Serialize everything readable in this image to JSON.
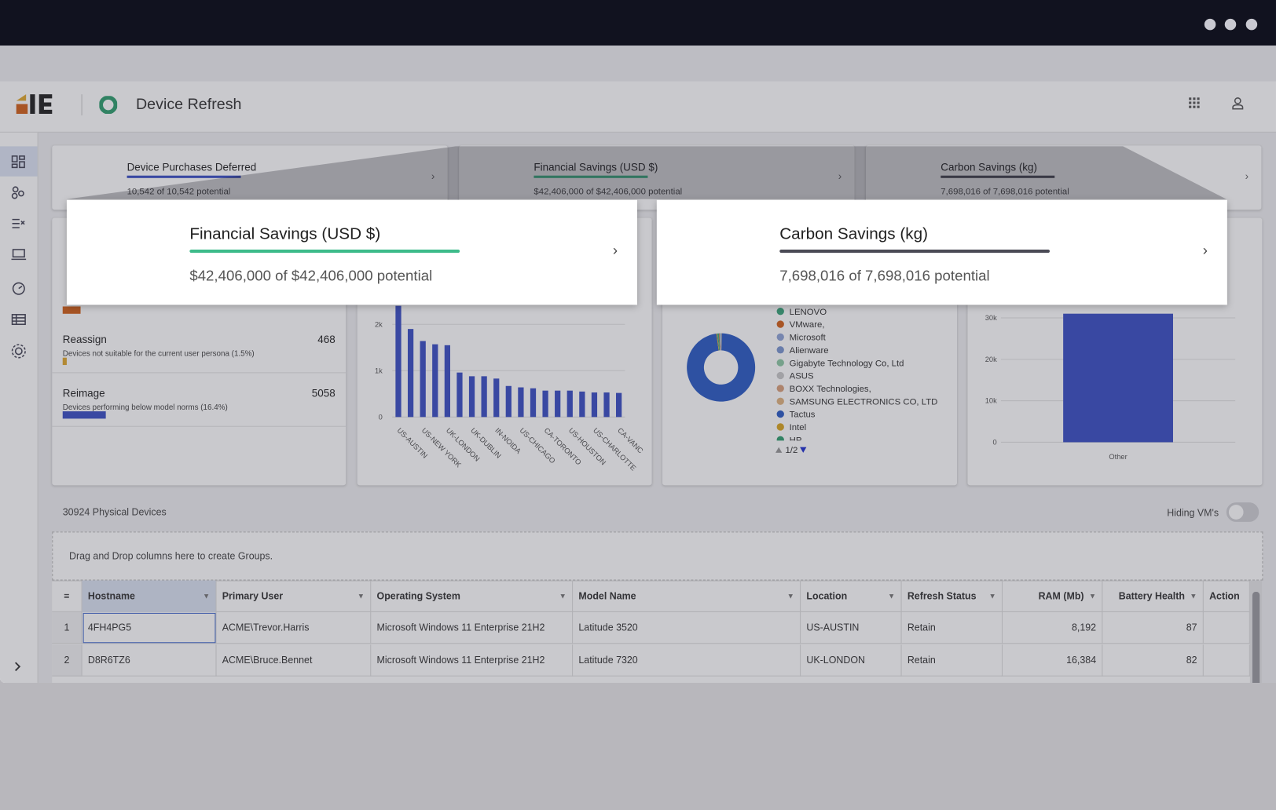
{
  "header": {
    "app_title": "Device Refresh"
  },
  "kpis": [
    {
      "title": "Device Purchases Deferred",
      "value_text": "10,542 of 10,542 potential"
    },
    {
      "title": "Financial Savings (USD $)",
      "value_text": "$42,406,000 of $42,406,000 potential"
    },
    {
      "title": "Carbon Savings (kg)",
      "value_text": "7,698,016 of 7,698,016 potential"
    }
  ],
  "popups": [
    {
      "title": "Financial Savings (USD $)",
      "value_text": "$42,406,000 of $42,406,000 potential"
    },
    {
      "title": "Carbon Savings (kg)",
      "value_text": "7,698,016 of 7,698,016 potential"
    }
  ],
  "recommendations": [
    {
      "title": "Reassign",
      "count": 468,
      "description": "Devices not suitable for the current user persona (1.5%)",
      "color": "#e0a82e"
    },
    {
      "title": "Reimage",
      "count": 5058,
      "description": "Devices performing below model norms (16.4%)",
      "color": "#3a4fc4"
    }
  ],
  "location_chart": {
    "type": "bar",
    "categories": [
      "US-AUSTIN",
      null,
      "US-NEW YORK",
      null,
      "UK-LONDON",
      null,
      "UK-DUBLIN",
      null,
      "IN-NOIDA",
      null,
      "US-CHICAGO",
      null,
      "CA-TORONTO",
      null,
      "US-HOUSTON",
      null,
      "US-CHARLOTTE",
      null,
      "CA-VANC"
    ],
    "values": [
      2400,
      1900,
      1640,
      1570,
      1550,
      960,
      880,
      880,
      830,
      670,
      640,
      620,
      570,
      570,
      570,
      550,
      530,
      530,
      520
    ],
    "color": "#3a4fc4",
    "ylim": [
      0,
      2500
    ],
    "yticks": [
      0,
      {
        "value": 1000,
        "label": "1k"
      },
      {
        "value": 2000,
        "label": "2k"
      }
    ]
  },
  "manufacturer_chart": {
    "type": "pie",
    "categories": [
      "LENOVO",
      "VMware,",
      "Microsoft",
      "Alienware",
      "Gigabyte Technology Co, Ltd",
      "ASUS",
      "BOXX Technologies,",
      "SAMSUNG ELECTRONICS CO, LTD",
      "Tactus",
      "Intel",
      "HP"
    ],
    "values": [
      0.5,
      0.3,
      0.3,
      0.2,
      0.2,
      0.1,
      0.1,
      0.1,
      97.5,
      0.4,
      0.3
    ],
    "colors": [
      "#3aa57a",
      "#d2601a",
      "#8fa3d6",
      "#7b96d0",
      "#8ec9a5",
      "#c9c9c9",
      "#d9a07a",
      "#e0b27e",
      "#2b5bc4",
      "#d9a520",
      "#2f9e6e"
    ],
    "pager": "1/2"
  },
  "model_chart": {
    "type": "bar",
    "categories": [
      "Other"
    ],
    "values": [
      31000
    ],
    "color": "#3a4fc4",
    "ylim": [
      0,
      35000
    ],
    "yticks": [
      0,
      {
        "value": 10000,
        "label": "10k"
      },
      {
        "value": 20000,
        "label": "20k"
      },
      {
        "value": 30000,
        "label": "30k"
      }
    ]
  },
  "table": {
    "device_count": 30924,
    "device_label": "Physical Devices",
    "toggle_label": "Hiding VM's",
    "group_hint": "Drag and Drop columns here to create Groups.",
    "columns": [
      "Hostname",
      "Primary User",
      "Operating System",
      "Model Name",
      "Location",
      "Refresh Status",
      "RAM (Mb)",
      "Battery Health",
      "Action"
    ],
    "rows": [
      [
        "1",
        "4FH4PG5",
        "ACME\\Trevor.Harris",
        "Microsoft Windows 11 Enterprise 21H2",
        "Latitude 3520",
        "US-AUSTIN",
        "Retain",
        "8,192",
        "87",
        ""
      ],
      [
        "2",
        "D8R6TZ6",
        "ACME\\Bruce.Bennet",
        "Microsoft Windows 11 Enterprise 21H2",
        "Latitude 7320",
        "UK-LONDON",
        "Retain",
        "16,384",
        "82",
        ""
      ]
    ]
  }
}
